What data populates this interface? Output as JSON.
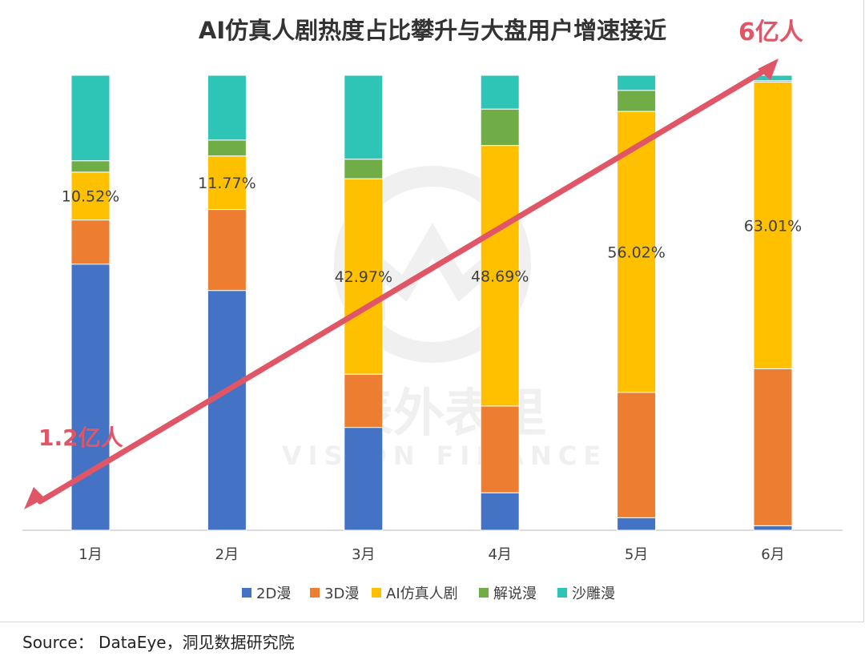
{
  "chart_data": {
    "type": "bar",
    "stacked": true,
    "percent_stacked": true,
    "title": "AI仿真人剧热度占比攀升与大盘用户增速接近",
    "categories": [
      "1月",
      "2月",
      "3月",
      "4月",
      "5月",
      "6月"
    ],
    "series": [
      {
        "name": "2D漫",
        "color": "#4472c4",
        "values": [
          58.5,
          52.7,
          22.6,
          7.0,
          2.5,
          1.0
        ]
      },
      {
        "name": "3D漫",
        "color": "#ed7d31",
        "values": [
          9.7,
          17.8,
          11.7,
          16.2,
          25.0,
          34.5
        ]
      },
      {
        "name": "AI仿真人剧",
        "color": "#ffc000",
        "values": [
          10.52,
          11.77,
          42.97,
          48.69,
          56.02,
          63.01
        ]
      },
      {
        "name": "解说漫",
        "color": "#70ad47",
        "values": [
          2.5,
          3.5,
          4.3,
          6.8,
          4.2,
          0.3
        ]
      },
      {
        "name": "沙雕漫",
        "color": "#2ec4b6",
        "values": [
          18.78,
          14.23,
          18.43,
          6.31,
          3.0,
          1.19
        ]
      }
    ],
    "data_labels": [
      "10.52%",
      "11.77%",
      "42.97%",
      "48.69%",
      "56.02%",
      "63.01%"
    ],
    "ylim": [
      0,
      100
    ],
    "legend": "bottom",
    "grid": false,
    "trend_arrow": {
      "from_label": "1.2亿人",
      "to_label": "6亿人",
      "color": "#e05666"
    }
  },
  "source": "Source：  DataEye，洞见数据研究院",
  "watermark": {
    "cn": "表外表里",
    "en": "VISION FINANCE"
  }
}
